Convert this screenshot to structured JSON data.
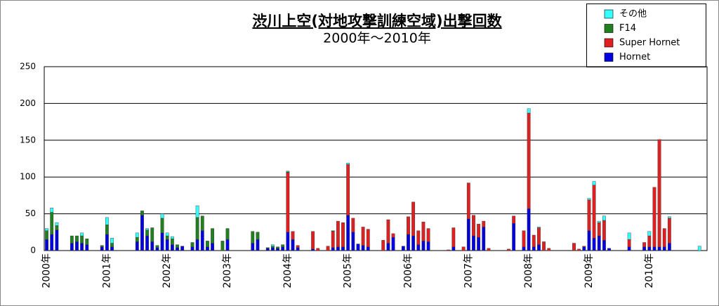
{
  "chart_data": {
    "type": "stacked-bar",
    "title": "渋川上空(対地攻撃訓練空域)出撃回数",
    "subtitle": "2000年～2010年",
    "categories": [
      "2000年",
      null,
      null,
      null,
      null,
      null,
      null,
      null,
      null,
      null,
      null,
      null,
      "2001年",
      null,
      null,
      null,
      null,
      null,
      null,
      null,
      null,
      null,
      null,
      null,
      "2002年",
      null,
      null,
      null,
      null,
      null,
      null,
      null,
      null,
      null,
      null,
      null,
      "2003年",
      null,
      null,
      null,
      null,
      null,
      null,
      null,
      null,
      null,
      null,
      null,
      "2004年",
      null,
      null,
      null,
      null,
      null,
      null,
      null,
      null,
      null,
      null,
      null,
      "2005年",
      null,
      null,
      null,
      null,
      null,
      null,
      null,
      null,
      null,
      null,
      null,
      "2006年",
      null,
      null,
      null,
      null,
      null,
      null,
      null,
      null,
      null,
      null,
      null,
      "2007年",
      null,
      null,
      null,
      null,
      null,
      null,
      null,
      null,
      null,
      null,
      null,
      "2008年",
      null,
      null,
      null,
      null,
      null,
      null,
      null,
      null,
      null,
      null,
      null,
      "2009年",
      null,
      null,
      null,
      null,
      null,
      null,
      null,
      null,
      null,
      null,
      null,
      "2010年",
      null,
      null,
      null,
      null,
      null,
      null,
      null,
      null,
      null,
      null,
      null
    ],
    "series": [
      {
        "name": "その他",
        "color": "#33ffff",
        "values": [
          3,
          6,
          4,
          0,
          0,
          0,
          0,
          4,
          0,
          0,
          0,
          0,
          10,
          7,
          0,
          0,
          0,
          0,
          6,
          0,
          2,
          0,
          0,
          6,
          4,
          3,
          0,
          0,
          0,
          0,
          16,
          0,
          0,
          0,
          0,
          0,
          0,
          0,
          0,
          0,
          0,
          0,
          0,
          0,
          0,
          2,
          0,
          0,
          1,
          0,
          0,
          0,
          0,
          0,
          0,
          0,
          0,
          0,
          0,
          0,
          2,
          0,
          0,
          0,
          0,
          0,
          0,
          0,
          0,
          0,
          0,
          0,
          0,
          0,
          0,
          0,
          0,
          0,
          0,
          0,
          0,
          0,
          0,
          0,
          0,
          0,
          0,
          0,
          0,
          0,
          0,
          0,
          0,
          0,
          0,
          0,
          6,
          0,
          1,
          0,
          0,
          0,
          0,
          0,
          0,
          0,
          0,
          0,
          2,
          5,
          2,
          6,
          0,
          0,
          0,
          0,
          9,
          0,
          0,
          0,
          6,
          0,
          0,
          0,
          2,
          0,
          0,
          0,
          0,
          0,
          6,
          0
        ]
      },
      {
        "name": "F14",
        "color": "#208020",
        "values": [
          12,
          30,
          6,
          0,
          0,
          10,
          8,
          10,
          8,
          0,
          0,
          2,
          13,
          5,
          0,
          0,
          0,
          0,
          6,
          6,
          8,
          19,
          3,
          20,
          5,
          8,
          4,
          0,
          0,
          6,
          30,
          20,
          8,
          20,
          0,
          13,
          15,
          0,
          0,
          0,
          0,
          16,
          10,
          0,
          1,
          2,
          2,
          3,
          1,
          0,
          0,
          0,
          0,
          0,
          0,
          0,
          0,
          1,
          0,
          0,
          0,
          0,
          0,
          0,
          0,
          0,
          0,
          0,
          0,
          0,
          0,
          0,
          0,
          0,
          0,
          0,
          0,
          0,
          0,
          0,
          0,
          0,
          0,
          0,
          0,
          0,
          0,
          0,
          0,
          0,
          0,
          0,
          0,
          0,
          0,
          0,
          0,
          0,
          0,
          0,
          0,
          0,
          0,
          0,
          0,
          0,
          0,
          0,
          0,
          0,
          0,
          0,
          0,
          0,
          0,
          0,
          0,
          0,
          0,
          0,
          0,
          0,
          0,
          0,
          0,
          0,
          0,
          0,
          0,
          0,
          0,
          0
        ]
      },
      {
        "name": "Super Hornet",
        "color": "#e02020",
        "values": [
          0,
          0,
          0,
          0,
          0,
          0,
          0,
          0,
          0,
          0,
          0,
          0,
          0,
          0,
          0,
          0,
          0,
          0,
          0,
          0,
          0,
          0,
          0,
          0,
          0,
          0,
          0,
          0,
          0,
          0,
          0,
          0,
          0,
          0,
          0,
          0,
          0,
          0,
          0,
          0,
          0,
          0,
          0,
          0,
          0,
          0,
          0,
          0,
          81,
          11,
          3,
          0,
          0,
          24,
          3,
          0,
          6,
          22,
          35,
          33,
          69,
          19,
          0,
          25,
          24,
          0,
          0,
          14,
          32,
          5,
          0,
          0,
          24,
          46,
          19,
          26,
          18,
          0,
          0,
          0,
          1,
          26,
          0,
          5,
          49,
          28,
          18,
          8,
          3,
          0,
          0,
          0,
          2,
          10,
          0,
          22,
          130,
          16,
          23,
          12,
          3,
          0,
          0,
          0,
          0,
          10,
          2,
          1,
          42,
          72,
          18,
          27,
          0,
          0,
          0,
          0,
          10,
          0,
          0,
          6,
          15,
          81,
          146,
          25,
          34,
          0,
          0,
          0,
          0,
          0,
          0,
          0
        ]
      },
      {
        "name": "Hornet",
        "color": "#0000e0",
        "values": [
          15,
          22,
          28,
          0,
          0,
          10,
          12,
          10,
          8,
          0,
          0,
          5,
          22,
          5,
          0,
          0,
          0,
          0,
          12,
          48,
          20,
          12,
          4,
          24,
          15,
          8,
          4,
          6,
          0,
          5,
          15,
          27,
          5,
          10,
          0,
          0,
          15,
          0,
          0,
          0,
          0,
          10,
          15,
          0,
          3,
          4,
          3,
          5,
          25,
          15,
          4,
          0,
          0,
          2,
          0,
          0,
          0,
          4,
          5,
          5,
          48,
          25,
          9,
          7,
          5,
          0,
          0,
          0,
          10,
          18,
          0,
          6,
          22,
          20,
          8,
          13,
          12,
          0,
          0,
          0,
          0,
          5,
          0,
          0,
          43,
          20,
          18,
          32,
          0,
          0,
          0,
          0,
          0,
          37,
          0,
          5,
          57,
          5,
          8,
          0,
          0,
          0,
          0,
          0,
          0,
          0,
          0,
          5,
          27,
          17,
          20,
          14,
          3,
          0,
          0,
          0,
          5,
          0,
          0,
          5,
          5,
          5,
          5,
          5,
          10,
          0,
          0,
          0,
          0,
          0,
          0,
          0
        ]
      }
    ],
    "ylim": [
      0,
      250
    ],
    "yticks": [
      0,
      50,
      100,
      150,
      200,
      250
    ],
    "grid": true
  }
}
